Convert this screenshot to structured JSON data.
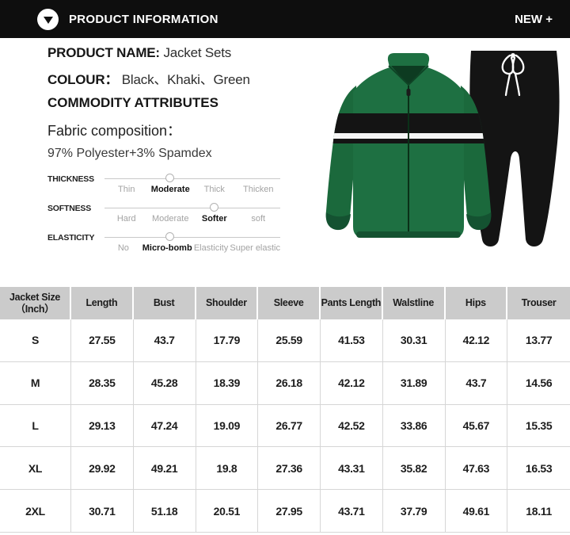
{
  "header": {
    "title": "PRODUCT INFORMATION",
    "badge": "NEW +",
    "icon": "arrow-down-circle"
  },
  "product": {
    "name_label": "PRODUCT NAME:",
    "name_value": "Jacket Sets",
    "colour_label": "COLOUR：",
    "colour_value": "Black、Khaki、Green",
    "attributes_heading": "COMMODITY ATTRIBUTES",
    "fabric_label": "Fabric composition：",
    "fabric_value": "97% Polyester+3% Spamdex"
  },
  "attributes": [
    {
      "name": "THICKNESS",
      "options": [
        "Thin",
        "Moderate",
        "Thick",
        "Thicken"
      ],
      "selected": 1
    },
    {
      "name": "SOFTNESS",
      "options": [
        "Hard",
        "Moderate",
        "Softer",
        "soft"
      ],
      "selected": 2
    },
    {
      "name": "ELASTICITY",
      "options": [
        "No",
        "Micro-bomb",
        "Elasticity",
        "Super elastic"
      ],
      "selected": 1
    }
  ],
  "size_table": {
    "columns": [
      "Jacket Size\n（Inch）",
      "Length",
      "Bust",
      "Shoulder",
      "Sleeve",
      "Pants Length",
      "Walstline",
      "Hips",
      "Trouser"
    ],
    "rows": [
      {
        "size": "S",
        "values": [
          "27.55",
          "43.7",
          "17.79",
          "25.59",
          "41.53",
          "30.31",
          "42.12",
          "13.77"
        ]
      },
      {
        "size": "M",
        "values": [
          "28.35",
          "45.28",
          "18.39",
          "26.18",
          "42.12",
          "31.89",
          "43.7",
          "14.56"
        ]
      },
      {
        "size": "L",
        "values": [
          "29.13",
          "47.24",
          "19.09",
          "26.77",
          "42.52",
          "33.86",
          "45.67",
          "15.35"
        ]
      },
      {
        "size": "XL",
        "values": [
          "29.92",
          "49.21",
          "19.8",
          "27.36",
          "43.31",
          "35.82",
          "47.63",
          "16.53"
        ]
      },
      {
        "size": "2XL",
        "values": [
          "30.71",
          "51.18",
          "20.51",
          "27.95",
          "43.71",
          "37.79",
          "49.61",
          "18.11"
        ]
      }
    ]
  },
  "colors": {
    "header_bg": "#0e0e0e",
    "jacket_green": "#1e7042",
    "jacket_dark_green": "#145231",
    "stripe_black": "#141414",
    "stripe_white": "#f5f5f5",
    "pants_black": "#141414",
    "table_header_bg": "#cbcbcb",
    "slider_track": "#c9c9c9"
  }
}
